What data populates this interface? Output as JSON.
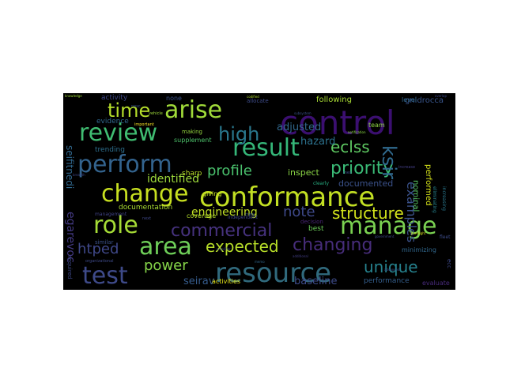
{
  "wordcloud": {
    "background": "#000000",
    "words": [
      {
        "text": "control",
        "size": 42,
        "color": "#3b0f70",
        "rot": 0
      },
      {
        "text": "conformance",
        "size": 34,
        "color": "#c2df23",
        "rot": 0
      },
      {
        "text": "resource",
        "size": 34,
        "color": "#30697c",
        "rot": 0
      },
      {
        "text": "manage",
        "size": 30,
        "color": "#7ad151",
        "rot": 0
      },
      {
        "text": "change",
        "size": 30,
        "color": "#c8e020",
        "rot": 0
      },
      {
        "text": "test",
        "size": 30,
        "color": "#3e4a89",
        "rot": 0
      },
      {
        "text": "arise",
        "size": 30,
        "color": "#a0da39",
        "rot": 0
      },
      {
        "text": "review",
        "size": 30,
        "color": "#40bd72",
        "rot": 0
      },
      {
        "text": "perform",
        "size": 30,
        "color": "#33638d",
        "rot": 0
      },
      {
        "text": "result",
        "size": 30,
        "color": "#35b779",
        "rot": 0
      },
      {
        "text": "role",
        "size": 30,
        "color": "#a5db36",
        "rot": 0
      },
      {
        "text": "area",
        "size": 30,
        "color": "#6ece58",
        "rot": 0
      },
      {
        "text": "commercial",
        "size": 22,
        "color": "#46327e",
        "rot": 0
      },
      {
        "text": "high",
        "size": 24,
        "color": "#2a788e",
        "rot": 0
      },
      {
        "text": "time",
        "size": 24,
        "color": "#b5de2b",
        "rot": 0
      },
      {
        "text": "priority",
        "size": 22,
        "color": "#3aba76",
        "rot": 0
      },
      {
        "text": "changing",
        "size": 22,
        "color": "#472d7b",
        "rot": 0
      },
      {
        "text": "expected",
        "size": 20,
        "color": "#b8de29",
        "rot": 0
      },
      {
        "text": "structure",
        "size": 20,
        "color": "#d2e21b",
        "rot": 0
      },
      {
        "text": "unique",
        "size": 20,
        "color": "#26828e",
        "rot": 0
      },
      {
        "text": "ksir",
        "size": 24,
        "color": "#306a8e",
        "rot": 90
      },
      {
        "text": "eclss",
        "size": 20,
        "color": "#5ec962",
        "rot": 0
      },
      {
        "text": "profile",
        "size": 18,
        "color": "#4ac16d",
        "rot": 0
      },
      {
        "text": "htped",
        "size": 18,
        "color": "#3f4889",
        "rot": 0
      },
      {
        "text": "power",
        "size": 18,
        "color": "#86d549",
        "rot": 0
      },
      {
        "text": "note",
        "size": 18,
        "color": "#3e4989",
        "rot": 0
      },
      {
        "text": "examples",
        "size": 16,
        "color": "#3b528b",
        "rot": 90
      },
      {
        "text": "identified",
        "size": 14,
        "color": "#9dd93b",
        "rot": 0
      },
      {
        "text": "engineering",
        "size": 14,
        "color": "#c0df25",
        "rot": 0
      },
      {
        "text": "adjusted",
        "size": 13,
        "color": "#31688e",
        "rot": 0
      },
      {
        "text": "hazard",
        "size": 13,
        "color": "#2c728e",
        "rot": 0
      },
      {
        "text": "baseline",
        "size": 13,
        "color": "#3e4c8a",
        "rot": 0
      },
      {
        "text": "seirav",
        "size": 13,
        "color": "#365c8d",
        "rot": 0
      },
      {
        "text": "egarevoc",
        "size": 14,
        "color": "#443a83",
        "rot": 90
      },
      {
        "text": "seifitnedi",
        "size": 12,
        "color": "#31688e",
        "rot": 90
      },
      {
        "text": "documented",
        "size": 11,
        "color": "#3b528b",
        "rot": 0
      },
      {
        "text": "inspect",
        "size": 11,
        "color": "#8bd646",
        "rot": 0
      },
      {
        "text": "performed",
        "size": 10,
        "color": "#d5e21a",
        "rot": 90
      },
      {
        "text": "following",
        "size": 10,
        "color": "#a8db34",
        "rot": 0
      },
      {
        "text": "gnidrocca",
        "size": 10,
        "color": "#39558c",
        "rot": 0
      },
      {
        "text": "nominal",
        "size": 10,
        "color": "#5ac864",
        "rot": 90
      },
      {
        "text": "documentation",
        "size": 9,
        "color": "#aadc32",
        "rot": 0
      },
      {
        "text": "sharp",
        "size": 9,
        "color": "#b8de29",
        "rot": 0
      },
      {
        "text": "trending",
        "size": 9,
        "color": "#2e6f8e",
        "rot": 0
      },
      {
        "text": "activity",
        "size": 9,
        "color": "#3f4889",
        "rot": 0
      },
      {
        "text": "evidence",
        "size": 9,
        "color": "#31688e",
        "rot": 0
      },
      {
        "text": "supplement",
        "size": 8,
        "color": "#4ec36b",
        "rot": 0
      },
      {
        "text": "giving",
        "size": 8,
        "color": "#c2df23",
        "rot": 0
      },
      {
        "text": "coverage",
        "size": 8,
        "color": "#b5de2b",
        "rot": 0
      },
      {
        "text": "activities",
        "size": 8,
        "color": "#e5e419",
        "rot": 0
      },
      {
        "text": "best",
        "size": 9,
        "color": "#6ccd5a",
        "rot": 0
      },
      {
        "text": "performance",
        "size": 9,
        "color": "#355f8d",
        "rot": 0
      },
      {
        "text": "minimizing",
        "size": 8,
        "color": "#31688e",
        "rot": 0
      },
      {
        "text": "evaluate",
        "size": 8,
        "color": "#472a7a",
        "rot": 0
      },
      {
        "text": "decision",
        "size": 7,
        "color": "#482475",
        "rot": 0
      },
      {
        "text": "none",
        "size": 8,
        "color": "#3b528b",
        "rot": 0
      },
      {
        "text": "team",
        "size": 8,
        "color": "#8fd744",
        "rot": 0
      },
      {
        "text": "level",
        "size": 8,
        "color": "#31688e",
        "rot": 0
      },
      {
        "text": "allocate",
        "size": 7,
        "color": "#3e4c8a",
        "rot": 0
      },
      {
        "text": "making",
        "size": 7,
        "color": "#95d840",
        "rot": 0
      },
      {
        "text": "similar",
        "size": 7,
        "color": "#3b528b",
        "rot": 0
      },
      {
        "text": "required",
        "size": 7,
        "color": "#3e4989",
        "rot": 90
      },
      {
        "text": "management",
        "size": 6,
        "color": "#414487",
        "rot": 0
      },
      {
        "text": "clearly",
        "size": 6,
        "color": "#27ad81",
        "rot": 0
      },
      {
        "text": "increasing",
        "size": 6,
        "color": "#2a788e",
        "rot": 90
      },
      {
        "text": "eliminating",
        "size": 6,
        "color": "#26828e",
        "rot": 90
      },
      {
        "text": "independent",
        "size": 6,
        "color": "#3f4889",
        "rot": 0
      },
      {
        "text": "important",
        "size": 5,
        "color": "#fde725",
        "rot": 0
      },
      {
        "text": "vehicle",
        "size": 5,
        "color": "#9fda3a",
        "rot": 0
      },
      {
        "text": "nesc",
        "size": 5,
        "color": "#3b528b",
        "rot": 0
      },
      {
        "text": "increase",
        "size": 5,
        "color": "#433e85",
        "rot": 0
      },
      {
        "text": "next",
        "size": 5,
        "color": "#3f4788",
        "rot": 0
      },
      {
        "text": "organizational",
        "size": 5,
        "color": "#3e4a89",
        "rot": 0
      },
      {
        "text": "crew",
        "size": 5,
        "color": "#3b528b",
        "rot": 0
      },
      {
        "text": "fleet",
        "size": 6,
        "color": "#3e4c8a",
        "rot": 0
      },
      {
        "text": "knowledge",
        "size": 4,
        "color": "#a0da39",
        "rot": 0
      },
      {
        "text": "codified",
        "size": 4,
        "color": "#b0dd2f",
        "rot": 0
      },
      {
        "text": "notification",
        "size": 4,
        "color": "#8bd646",
        "rot": 0
      },
      {
        "text": "breadth",
        "size": 4,
        "color": "#3e4989",
        "rot": 0
      },
      {
        "text": "government",
        "size": 4,
        "color": "#3e4c8a",
        "rot": 0
      },
      {
        "text": "pre-flight",
        "size": 4,
        "color": "#d8e219",
        "rot": 0
      },
      {
        "text": "advanced",
        "size": 4,
        "color": "#3b528b",
        "rot": 0
      },
      {
        "text": "additional",
        "size": 4,
        "color": "#433e85",
        "rot": 0
      },
      {
        "text": "overlap",
        "size": 4,
        "color": "#3e4989",
        "rot": 0
      },
      {
        "text": "amplifier",
        "size": 4,
        "color": "#3f4889",
        "rot": 0
      },
      {
        "text": "subsystem",
        "size": 4,
        "color": "#3b528b",
        "rot": 0
      },
      {
        "text": "memo",
        "size": 4,
        "color": "#31688e",
        "rot": 0
      },
      {
        "text": "ecc",
        "size": 7,
        "color": "#3e4989",
        "rot": 90
      },
      {
        "text": "mes",
        "size": 5,
        "color": "#3b528b",
        "rot": 0
      }
    ]
  }
}
